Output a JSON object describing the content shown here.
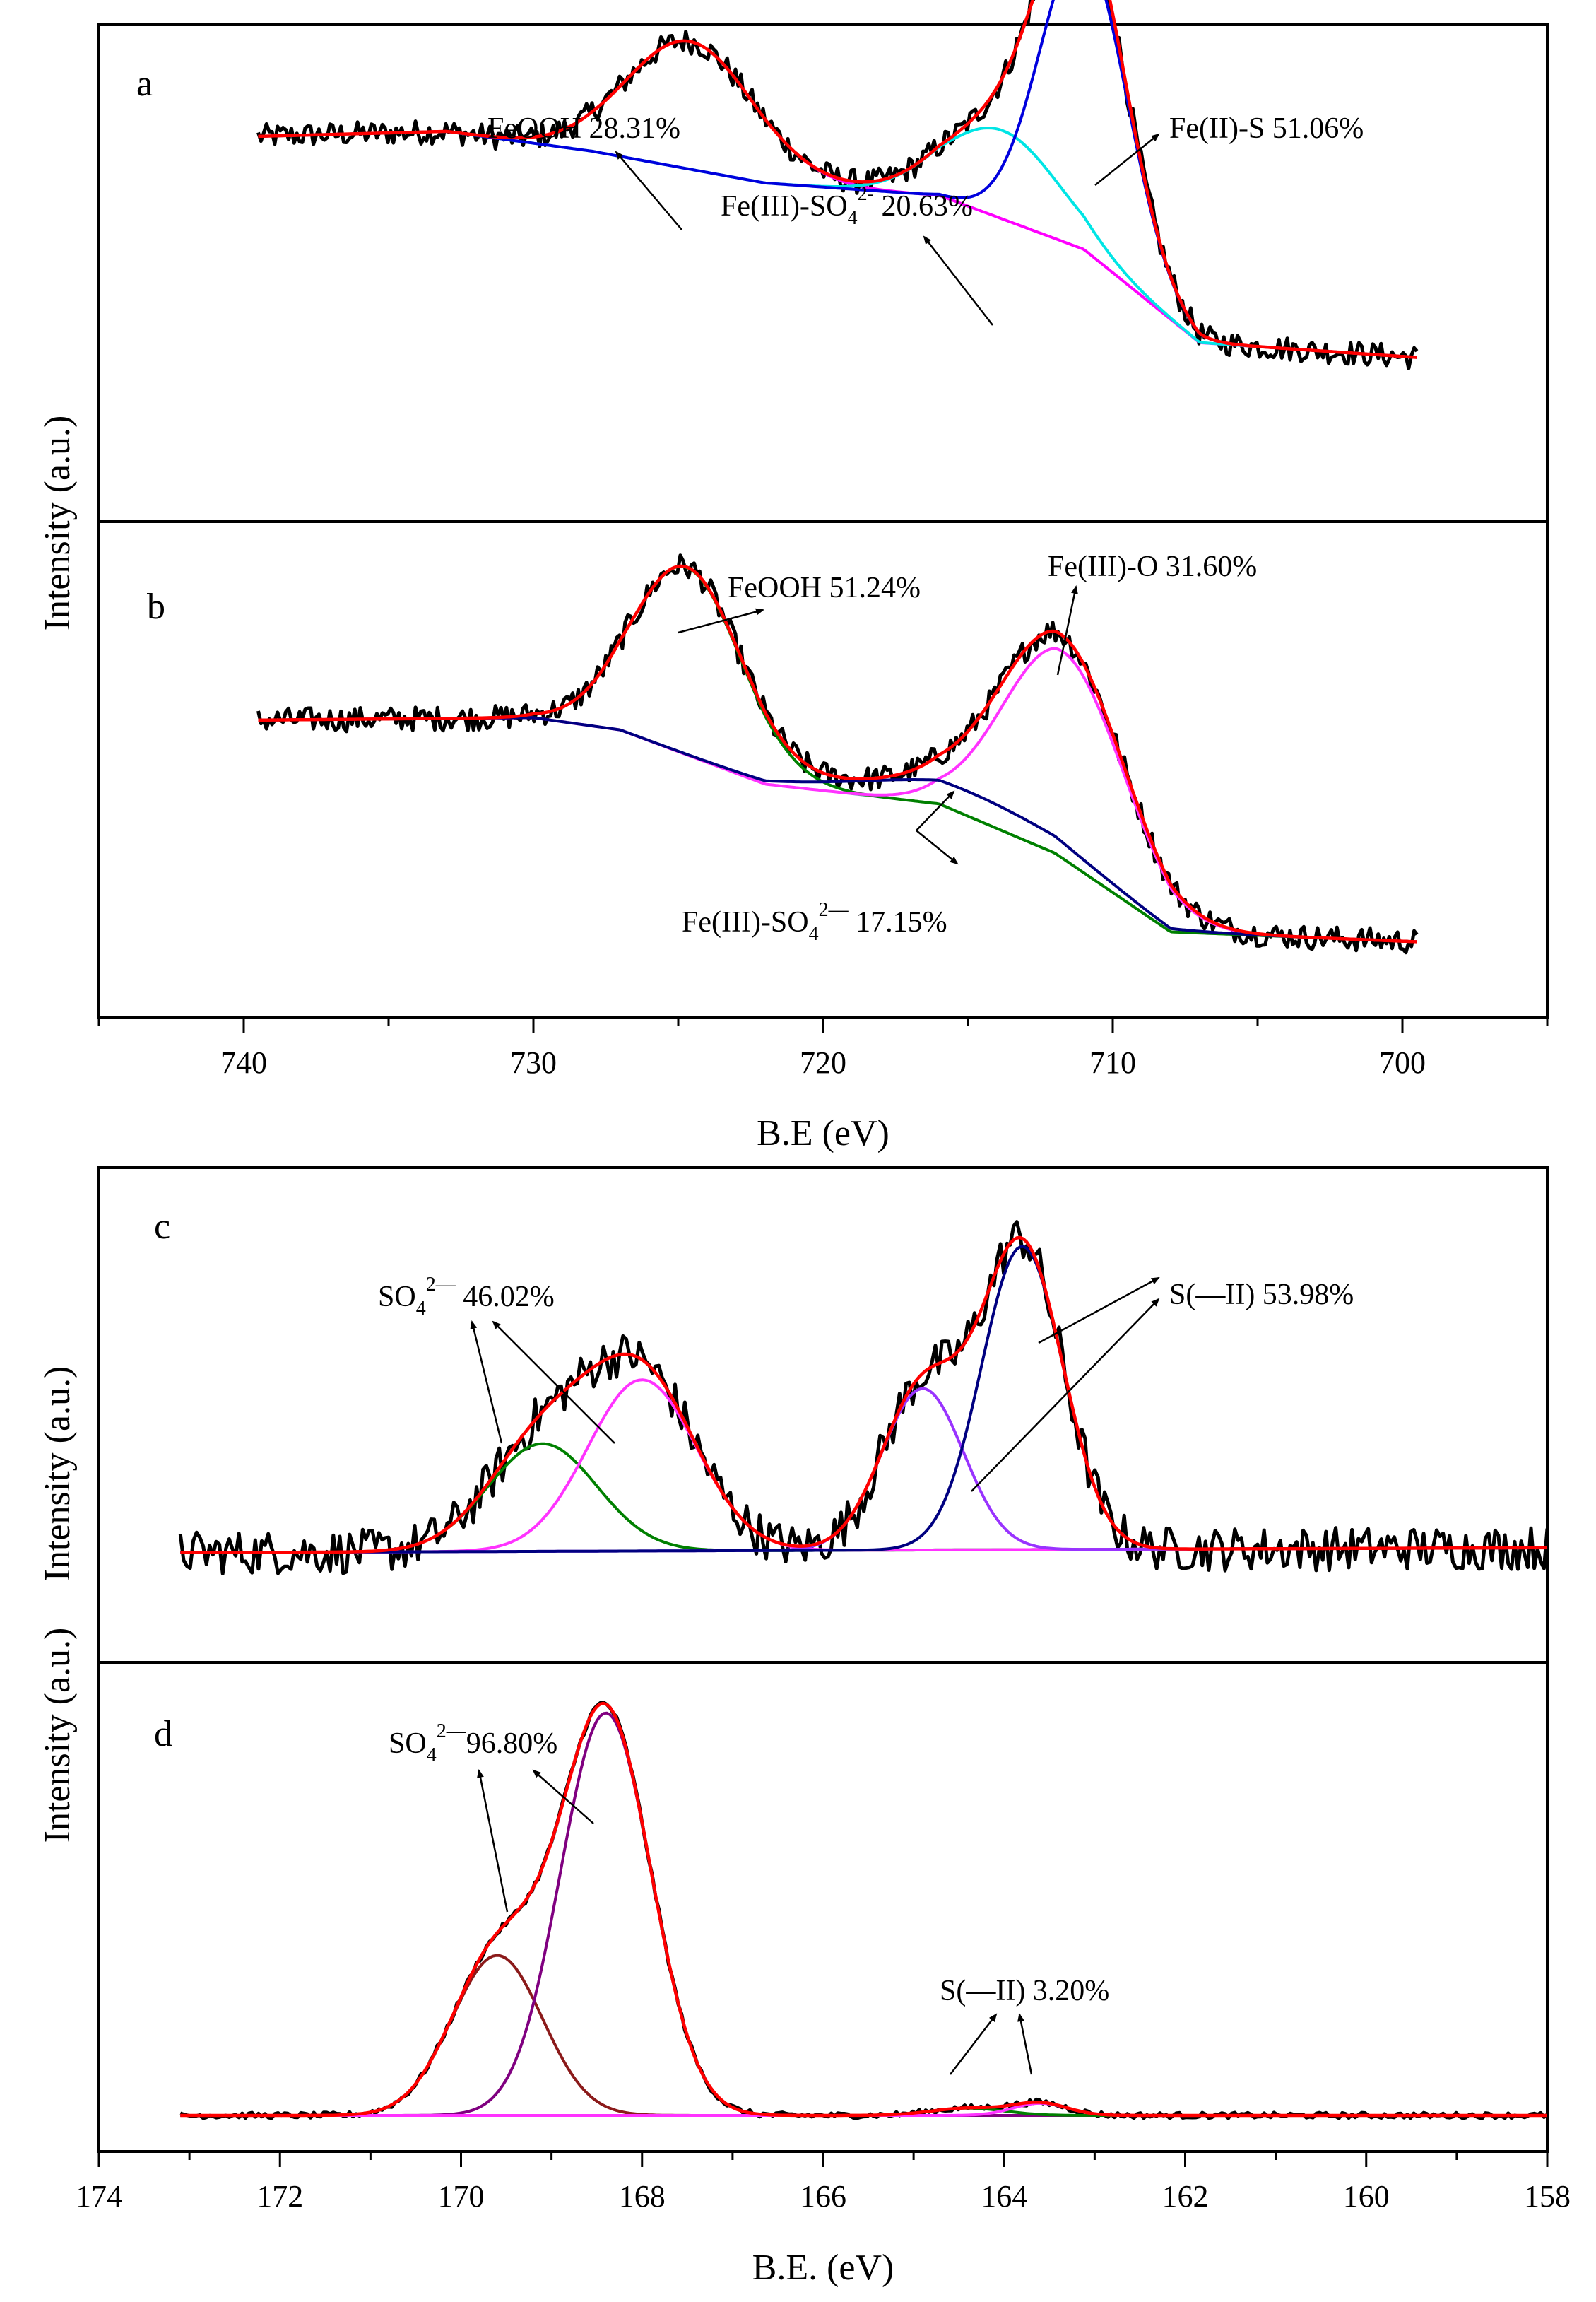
{
  "chart_data": [
    {
      "type": "line",
      "panel_label": "a",
      "xlabel": "B.E (eV)",
      "ylabel": "Intensity (a.u.)",
      "xlim": [
        745,
        695
      ],
      "x_ticks": [
        740,
        730,
        720,
        710,
        700
      ],
      "y_ticks_shown": false,
      "background": [
        [
          739.5,
          0.78
        ],
        [
          733,
          0.79
        ],
        [
          728,
          0.75
        ],
        [
          722,
          0.685
        ],
        [
          716,
          0.66
        ],
        [
          711,
          0.55
        ],
        [
          707,
          0.36
        ],
        [
          699.5,
          0.33
        ]
      ],
      "components": [
        {
          "label": "FeOOH",
          "percent": "28.31%",
          "center": 724.6,
          "width": 2.2,
          "height": 0.26,
          "color": "#ff00ff"
        },
        {
          "label": "Fe(III)-SO4 2-",
          "percent": "20.63%",
          "center": 713.8,
          "width": 2.0,
          "height": 0.18,
          "color": "#00e5e5"
        },
        {
          "label": "Fe(II)-S",
          "percent": "51.06%",
          "center": 711.0,
          "width": 1.5,
          "height": 0.62,
          "color": "#0000dd"
        }
      ],
      "envelope_color": "#ff0000",
      "raw_color": "#000000",
      "annotations": [
        {
          "name": "feooh",
          "parts": [
            "FeOOH 28.31%"
          ]
        },
        {
          "name": "fe3-so4",
          "parts": [
            "Fe(III)-SO",
            "4",
            "2-",
            " 20.63%"
          ]
        },
        {
          "name": "fe2-s",
          "parts": [
            "Fe(II)-S 51.06%"
          ]
        }
      ]
    },
    {
      "type": "line",
      "panel_label": "b",
      "xlabel": "B.E (eV)",
      "ylabel": "Intensity (a.u.)",
      "xlim": [
        745,
        695
      ],
      "x_ticks": [
        740,
        730,
        720,
        710,
        700
      ],
      "y_ticks_shown": false,
      "background": [
        [
          739.5,
          0.6
        ],
        [
          730,
          0.605
        ],
        [
          727,
          0.58
        ],
        [
          722,
          0.47
        ],
        [
          716,
          0.43
        ],
        [
          712,
          0.33
        ],
        [
          708,
          0.17
        ],
        [
          699.5,
          0.15
        ]
      ],
      "components": [
        {
          "label": "FeOOH",
          "percent": "51.24%",
          "center": 724.7,
          "width": 1.9,
          "height": 0.38,
          "color": "#008000"
        },
        {
          "label": "Fe(III)-O",
          "percent": "31.60%",
          "center": 711.7,
          "width": 2.1,
          "height": 0.42,
          "color": "#ff33ff"
        },
        {
          "label": "Fe(III)-SO4 2-",
          "percent": "17.15%",
          "center": 715.0,
          "width": 3.5,
          "height": 0.05,
          "color": "#000080"
        }
      ],
      "envelope_color": "#ff0000",
      "raw_color": "#000000",
      "annotations": [
        {
          "name": "feooh",
          "parts": [
            "FeOOH 51.24%"
          ]
        },
        {
          "name": "fe3-o",
          "parts": [
            "Fe(III)-O 31.60%"
          ]
        },
        {
          "name": "fe3-so4",
          "parts": [
            "Fe(III)-SO",
            "4",
            "2—",
            " 17.15%"
          ]
        }
      ]
    },
    {
      "type": "line",
      "panel_label": "c",
      "xlabel": "B.E. (eV)",
      "ylabel": "Intensity (a.u.)",
      "xlim": [
        174,
        158
      ],
      "x_ticks": [
        174,
        172,
        170,
        168,
        166,
        164,
        162,
        160,
        158
      ],
      "y_ticks_shown": false,
      "background": [
        [
          173.1,
          0.22
        ],
        [
          158,
          0.23
        ]
      ],
      "components": [
        {
          "label": "SO4 2-",
          "percent": "46.02%",
          "center": 169.1,
          "width": 0.6,
          "height": 0.22,
          "color": "#008000"
        },
        {
          "label": "SO4 2-",
          "percent": "46.02%",
          "center": 168.0,
          "width": 0.6,
          "height": 0.35,
          "color": "#ff33ff"
        },
        {
          "label": "S(-II)",
          "percent": "53.98%",
          "center": 164.9,
          "width": 0.45,
          "height": 0.33,
          "color": "#9933ff"
        },
        {
          "label": "S(-II)",
          "percent": "53.98%",
          "center": 163.8,
          "width": 0.45,
          "height": 0.62,
          "color": "#000080"
        }
      ],
      "envelope_color": "#ff0000",
      "raw_color": "#000000",
      "annotations": [
        {
          "name": "so4",
          "parts": [
            "SO",
            "4",
            "2—",
            " 46.02%"
          ]
        },
        {
          "name": "s2",
          "parts": [
            "S(—II) 53.98%"
          ]
        }
      ]
    },
    {
      "type": "line",
      "panel_label": "d",
      "xlabel": "B.E. (eV)",
      "ylabel": "Intensity (a.u.)",
      "xlim": [
        174,
        158
      ],
      "x_ticks": [
        174,
        172,
        170,
        168,
        166,
        164,
        162,
        160,
        158
      ],
      "y_ticks_shown": false,
      "background": [
        [
          173.1,
          0.07
        ],
        [
          158,
          0.07
        ]
      ],
      "components": [
        {
          "label": "SO4 2-",
          "percent": "96.80%",
          "center": 169.6,
          "width": 0.5,
          "height": 0.33,
          "color": "#8b1a1a"
        },
        {
          "label": "SO4 2-",
          "percent": "96.80%",
          "center": 168.4,
          "width": 0.5,
          "height": 0.83,
          "color": "#800080"
        },
        {
          "label": "S(-II)",
          "percent": "3.20%",
          "center": 164.4,
          "width": 0.4,
          "height": 0.015,
          "color": "#008000"
        },
        {
          "label": "S(-II)",
          "percent": "3.20%",
          "center": 163.6,
          "width": 0.3,
          "height": 0.025,
          "color": "#ff33ff"
        }
      ],
      "envelope_color": "#ff0000",
      "raw_color": "#000000",
      "annotations": [
        {
          "name": "so4",
          "parts": [
            "SO",
            "4",
            "2—",
            "96.80%"
          ]
        },
        {
          "name": "s2",
          "parts": [
            "S(—II) 3.20%"
          ]
        }
      ]
    }
  ]
}
